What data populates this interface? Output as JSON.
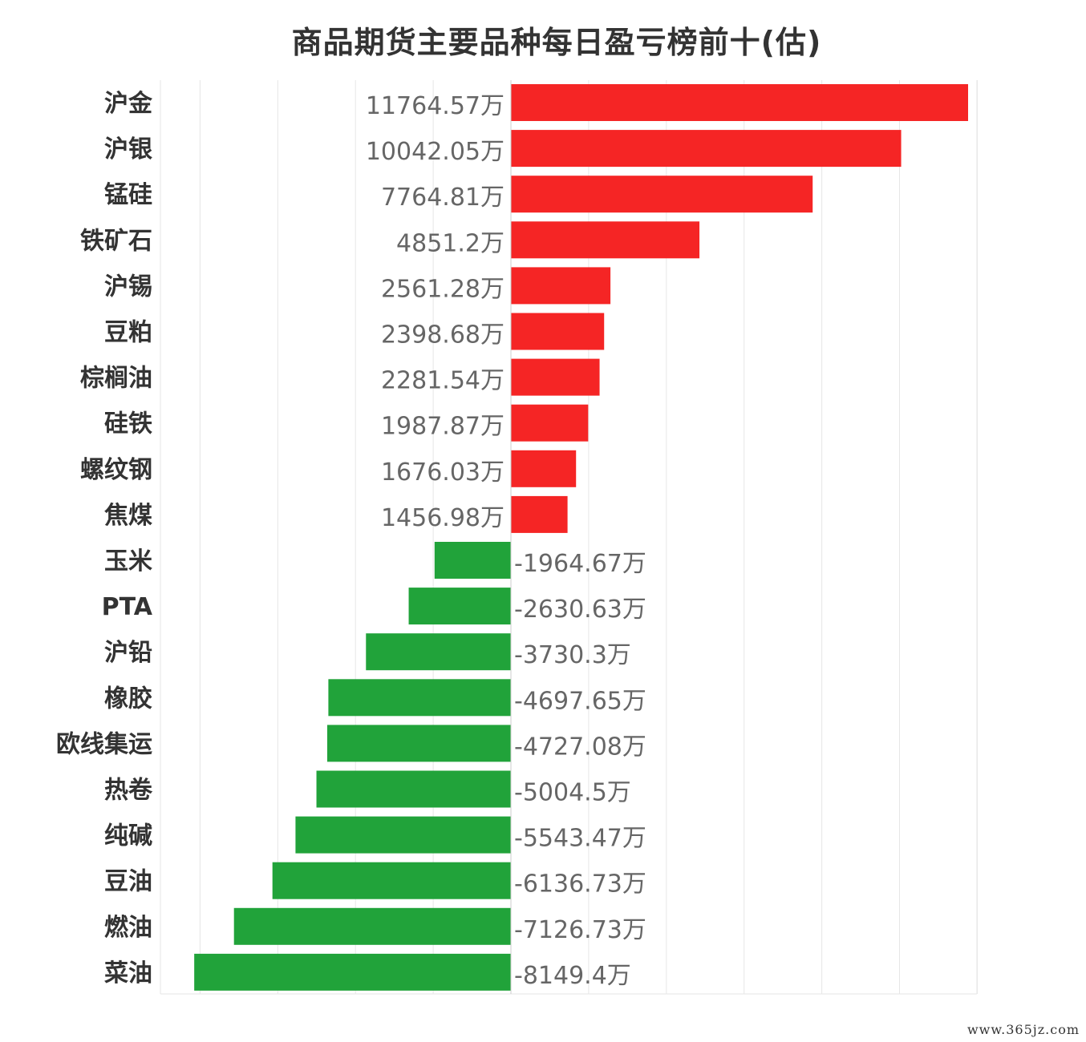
{
  "chart_data": {
    "type": "bar",
    "orientation": "horizontal",
    "title": "商品期货主要品种每日盈亏榜前十(估)",
    "unit": "万",
    "categories": [
      "沪金",
      "沪银",
      "锰硅",
      "铁矿石",
      "沪锡",
      "豆粕",
      "棕榈油",
      "硅铁",
      "螺纹钢",
      "焦煤",
      "玉米",
      "PTA",
      "沪铅",
      "橡胶",
      "欧线集运",
      "热卷",
      "纯碱",
      "豆油",
      "燃油",
      "菜油"
    ],
    "values": [
      11764.57,
      10042.05,
      7764.81,
      4851.2,
      2561.28,
      2398.68,
      2281.54,
      1987.87,
      1676.03,
      1456.98,
      -1964.67,
      -2630.63,
      -3730.3,
      -4697.65,
      -4727.08,
      -5004.5,
      -5543.47,
      -6136.73,
      -7126.73,
      -8149.4
    ],
    "value_labels": [
      "11764.57万",
      "10042.05万",
      "7764.81万",
      "4851.2万",
      "2561.28万",
      "2398.68万",
      "2281.54万",
      "1987.87万",
      "1676.03万",
      "1456.98万",
      "-1964.67万",
      "-2630.63万",
      "-3730.3万",
      "-4697.65万",
      "-4727.08万",
      "-5004.5万",
      "-5543.47万",
      "-6136.73万",
      "-7126.73万",
      "-8149.4万"
    ],
    "xlim": [
      -9000,
      12000
    ],
    "grid": true,
    "colors": {
      "positive": "#f52525",
      "negative": "#21a33a",
      "grid": "#e6e6e6"
    }
  },
  "watermark": "www.365jz.com"
}
